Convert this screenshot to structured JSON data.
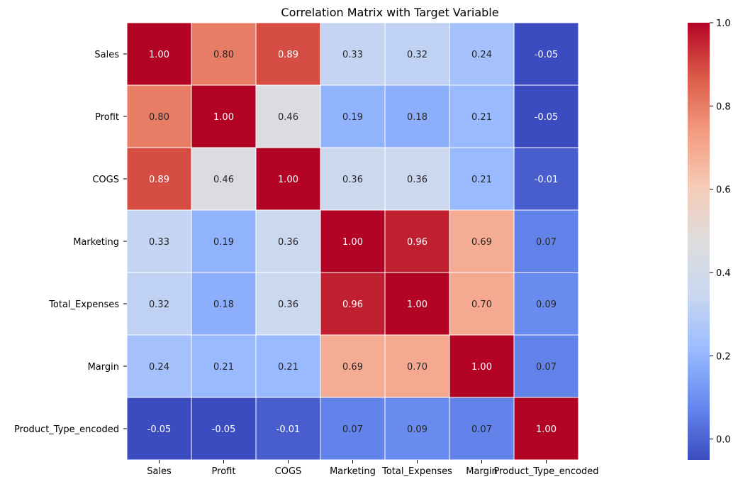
{
  "chart_data": {
    "type": "heatmap",
    "title": "Correlation Matrix with Target Variable",
    "xlabel": "",
    "ylabel": "",
    "x_categories": [
      "Sales",
      "Profit",
      "COGS",
      "Marketing",
      "Total_Expenses",
      "Margin",
      "Product_Type_encoded"
    ],
    "y_categories": [
      "Sales",
      "Profit",
      "COGS",
      "Marketing",
      "Total_Expenses",
      "Margin",
      "Product_Type_encoded"
    ],
    "values": [
      [
        1.0,
        0.8,
        0.89,
        0.33,
        0.32,
        0.24,
        -0.05
      ],
      [
        0.8,
        1.0,
        0.46,
        0.19,
        0.18,
        0.21,
        -0.05
      ],
      [
        0.89,
        0.46,
        1.0,
        0.36,
        0.36,
        0.21,
        -0.01
      ],
      [
        0.33,
        0.19,
        0.36,
        1.0,
        0.96,
        0.69,
        0.07
      ],
      [
        0.32,
        0.18,
        0.36,
        0.96,
        1.0,
        0.7,
        0.09
      ],
      [
        0.24,
        0.21,
        0.21,
        0.69,
        0.7,
        1.0,
        0.07
      ],
      [
        -0.05,
        -0.05,
        -0.01,
        0.07,
        0.09,
        0.07,
        1.0
      ]
    ],
    "value_format": "0.00",
    "colormap": "coolwarm",
    "colormap_stops": [
      "#3b4cc0",
      "#6788ee",
      "#9abbff",
      "#c9d7f0",
      "#dddddd",
      "#f6cbb7",
      "#f39c80",
      "#db5b48",
      "#b40426"
    ],
    "color_range": [
      -0.05,
      1.0
    ],
    "colorbar_ticks": [
      0.0,
      0.2,
      0.4,
      0.6,
      0.8,
      1.0
    ],
    "colorbar_tick_labels": [
      "0.0",
      "0.2",
      "0.4",
      "0.6",
      "0.8",
      "1.0"
    ],
    "grid": false,
    "cell_border_color": "#ffffff",
    "legend": "colorbar-right"
  }
}
